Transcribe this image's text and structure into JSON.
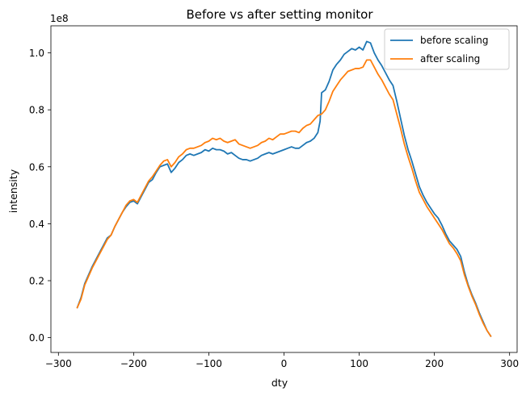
{
  "chart_data": {
    "type": "line",
    "title": "Before vs after setting monitor",
    "xlabel": "dty",
    "ylabel": "intensity",
    "y_offset_label": "1e8",
    "xlim": [
      -310,
      310
    ],
    "ylim": [
      -0.052,
      1.095
    ],
    "x_ticks": [
      -300,
      -200,
      -100,
      0,
      100,
      200,
      300
    ],
    "x_tick_labels": [
      "−300",
      "−200",
      "−100",
      "0",
      "100",
      "200",
      "300"
    ],
    "y_ticks": [
      0.0,
      0.2,
      0.4,
      0.6,
      0.8,
      1.0
    ],
    "y_tick_labels": [
      "0.0",
      "0.2",
      "0.4",
      "0.6",
      "0.8",
      "1.0"
    ],
    "grid": false,
    "legend": "top-right",
    "series": [
      {
        "name": "before scaling",
        "color": "#1f77b4",
        "points": [
          [
            -275,
            0.105
          ],
          [
            -270,
            0.14
          ],
          [
            -265,
            0.19
          ],
          [
            -260,
            0.22
          ],
          [
            -255,
            0.25
          ],
          [
            -250,
            0.275
          ],
          [
            -245,
            0.3
          ],
          [
            -240,
            0.325
          ],
          [
            -235,
            0.35
          ],
          [
            -230,
            0.36
          ],
          [
            -225,
            0.39
          ],
          [
            -220,
            0.415
          ],
          [
            -215,
            0.44
          ],
          [
            -210,
            0.46
          ],
          [
            -205,
            0.475
          ],
          [
            -200,
            0.48
          ],
          [
            -195,
            0.47
          ],
          [
            -190,
            0.495
          ],
          [
            -185,
            0.52
          ],
          [
            -180,
            0.545
          ],
          [
            -175,
            0.555
          ],
          [
            -170,
            0.58
          ],
          [
            -165,
            0.6
          ],
          [
            -160,
            0.605
          ],
          [
            -155,
            0.61
          ],
          [
            -150,
            0.58
          ],
          [
            -145,
            0.595
          ],
          [
            -140,
            0.615
          ],
          [
            -135,
            0.625
          ],
          [
            -130,
            0.64
          ],
          [
            -125,
            0.645
          ],
          [
            -120,
            0.64
          ],
          [
            -115,
            0.645
          ],
          [
            -110,
            0.65
          ],
          [
            -105,
            0.66
          ],
          [
            -100,
            0.655
          ],
          [
            -95,
            0.665
          ],
          [
            -90,
            0.66
          ],
          [
            -85,
            0.66
          ],
          [
            -80,
            0.655
          ],
          [
            -75,
            0.645
          ],
          [
            -70,
            0.65
          ],
          [
            -65,
            0.64
          ],
          [
            -60,
            0.63
          ],
          [
            -55,
            0.625
          ],
          [
            -50,
            0.625
          ],
          [
            -45,
            0.62
          ],
          [
            -40,
            0.625
          ],
          [
            -35,
            0.63
          ],
          [
            -30,
            0.64
          ],
          [
            -25,
            0.645
          ],
          [
            -20,
            0.65
          ],
          [
            -15,
            0.645
          ],
          [
            -10,
            0.65
          ],
          [
            -5,
            0.655
          ],
          [
            0,
            0.66
          ],
          [
            5,
            0.665
          ],
          [
            10,
            0.67
          ],
          [
            15,
            0.665
          ],
          [
            20,
            0.665
          ],
          [
            25,
            0.675
          ],
          [
            30,
            0.685
          ],
          [
            35,
            0.69
          ],
          [
            40,
            0.7
          ],
          [
            45,
            0.72
          ],
          [
            48,
            0.76
          ],
          [
            50,
            0.86
          ],
          [
            55,
            0.87
          ],
          [
            60,
            0.9
          ],
          [
            65,
            0.94
          ],
          [
            70,
            0.96
          ],
          [
            75,
            0.975
          ],
          [
            80,
            0.995
          ],
          [
            85,
            1.005
          ],
          [
            90,
            1.015
          ],
          [
            95,
            1.01
          ],
          [
            100,
            1.02
          ],
          [
            105,
            1.01
          ],
          [
            110,
            1.04
          ],
          [
            115,
            1.035
          ],
          [
            120,
            1.0
          ],
          [
            125,
            0.975
          ],
          [
            130,
            0.955
          ],
          [
            135,
            0.93
          ],
          [
            140,
            0.905
          ],
          [
            145,
            0.885
          ],
          [
            150,
            0.83
          ],
          [
            155,
            0.77
          ],
          [
            160,
            0.71
          ],
          [
            165,
            0.66
          ],
          [
            170,
            0.62
          ],
          [
            175,
            0.575
          ],
          [
            180,
            0.53
          ],
          [
            185,
            0.5
          ],
          [
            190,
            0.475
          ],
          [
            195,
            0.455
          ],
          [
            200,
            0.435
          ],
          [
            205,
            0.42
          ],
          [
            210,
            0.395
          ],
          [
            215,
            0.365
          ],
          [
            220,
            0.34
          ],
          [
            225,
            0.325
          ],
          [
            230,
            0.31
          ],
          [
            235,
            0.285
          ],
          [
            240,
            0.23
          ],
          [
            245,
            0.185
          ],
          [
            250,
            0.15
          ],
          [
            255,
            0.12
          ],
          [
            260,
            0.085
          ],
          [
            265,
            0.055
          ],
          [
            270,
            0.025
          ],
          [
            275,
            0.005
          ]
        ]
      },
      {
        "name": "after scaling",
        "color": "#ff7f0e",
        "points": [
          [
            -275,
            0.105
          ],
          [
            -270,
            0.135
          ],
          [
            -265,
            0.185
          ],
          [
            -260,
            0.215
          ],
          [
            -255,
            0.245
          ],
          [
            -250,
            0.27
          ],
          [
            -245,
            0.295
          ],
          [
            -240,
            0.32
          ],
          [
            -235,
            0.345
          ],
          [
            -230,
            0.36
          ],
          [
            -225,
            0.39
          ],
          [
            -220,
            0.415
          ],
          [
            -215,
            0.44
          ],
          [
            -210,
            0.465
          ],
          [
            -205,
            0.48
          ],
          [
            -200,
            0.485
          ],
          [
            -195,
            0.475
          ],
          [
            -190,
            0.5
          ],
          [
            -185,
            0.525
          ],
          [
            -180,
            0.55
          ],
          [
            -175,
            0.565
          ],
          [
            -170,
            0.585
          ],
          [
            -165,
            0.605
          ],
          [
            -160,
            0.62
          ],
          [
            -155,
            0.625
          ],
          [
            -150,
            0.6
          ],
          [
            -145,
            0.615
          ],
          [
            -140,
            0.635
          ],
          [
            -135,
            0.645
          ],
          [
            -130,
            0.66
          ],
          [
            -125,
            0.665
          ],
          [
            -120,
            0.665
          ],
          [
            -115,
            0.67
          ],
          [
            -110,
            0.675
          ],
          [
            -105,
            0.685
          ],
          [
            -100,
            0.69
          ],
          [
            -95,
            0.7
          ],
          [
            -90,
            0.695
          ],
          [
            -85,
            0.7
          ],
          [
            -80,
            0.69
          ],
          [
            -75,
            0.685
          ],
          [
            -70,
            0.69
          ],
          [
            -65,
            0.695
          ],
          [
            -60,
            0.68
          ],
          [
            -55,
            0.675
          ],
          [
            -50,
            0.67
          ],
          [
            -45,
            0.665
          ],
          [
            -40,
            0.67
          ],
          [
            -35,
            0.675
          ],
          [
            -30,
            0.685
          ],
          [
            -25,
            0.69
          ],
          [
            -20,
            0.7
          ],
          [
            -15,
            0.695
          ],
          [
            -10,
            0.705
          ],
          [
            -5,
            0.715
          ],
          [
            0,
            0.715
          ],
          [
            5,
            0.72
          ],
          [
            10,
            0.725
          ],
          [
            15,
            0.725
          ],
          [
            20,
            0.72
          ],
          [
            25,
            0.735
          ],
          [
            30,
            0.745
          ],
          [
            35,
            0.75
          ],
          [
            40,
            0.765
          ],
          [
            45,
            0.78
          ],
          [
            50,
            0.785
          ],
          [
            55,
            0.8
          ],
          [
            60,
            0.83
          ],
          [
            65,
            0.865
          ],
          [
            70,
            0.885
          ],
          [
            75,
            0.905
          ],
          [
            80,
            0.92
          ],
          [
            85,
            0.935
          ],
          [
            90,
            0.94
          ],
          [
            95,
            0.945
          ],
          [
            100,
            0.945
          ],
          [
            105,
            0.95
          ],
          [
            110,
            0.975
          ],
          [
            115,
            0.975
          ],
          [
            120,
            0.95
          ],
          [
            125,
            0.925
          ],
          [
            130,
            0.905
          ],
          [
            135,
            0.88
          ],
          [
            140,
            0.855
          ],
          [
            145,
            0.835
          ],
          [
            150,
            0.785
          ],
          [
            155,
            0.735
          ],
          [
            160,
            0.68
          ],
          [
            165,
            0.635
          ],
          [
            170,
            0.595
          ],
          [
            175,
            0.55
          ],
          [
            180,
            0.51
          ],
          [
            185,
            0.485
          ],
          [
            190,
            0.46
          ],
          [
            195,
            0.44
          ],
          [
            200,
            0.42
          ],
          [
            205,
            0.4
          ],
          [
            210,
            0.38
          ],
          [
            215,
            0.355
          ],
          [
            220,
            0.33
          ],
          [
            225,
            0.315
          ],
          [
            230,
            0.295
          ],
          [
            235,
            0.27
          ],
          [
            240,
            0.22
          ],
          [
            245,
            0.18
          ],
          [
            250,
            0.145
          ],
          [
            255,
            0.115
          ],
          [
            260,
            0.08
          ],
          [
            265,
            0.05
          ],
          [
            270,
            0.025
          ],
          [
            275,
            0.005
          ]
        ]
      }
    ]
  }
}
